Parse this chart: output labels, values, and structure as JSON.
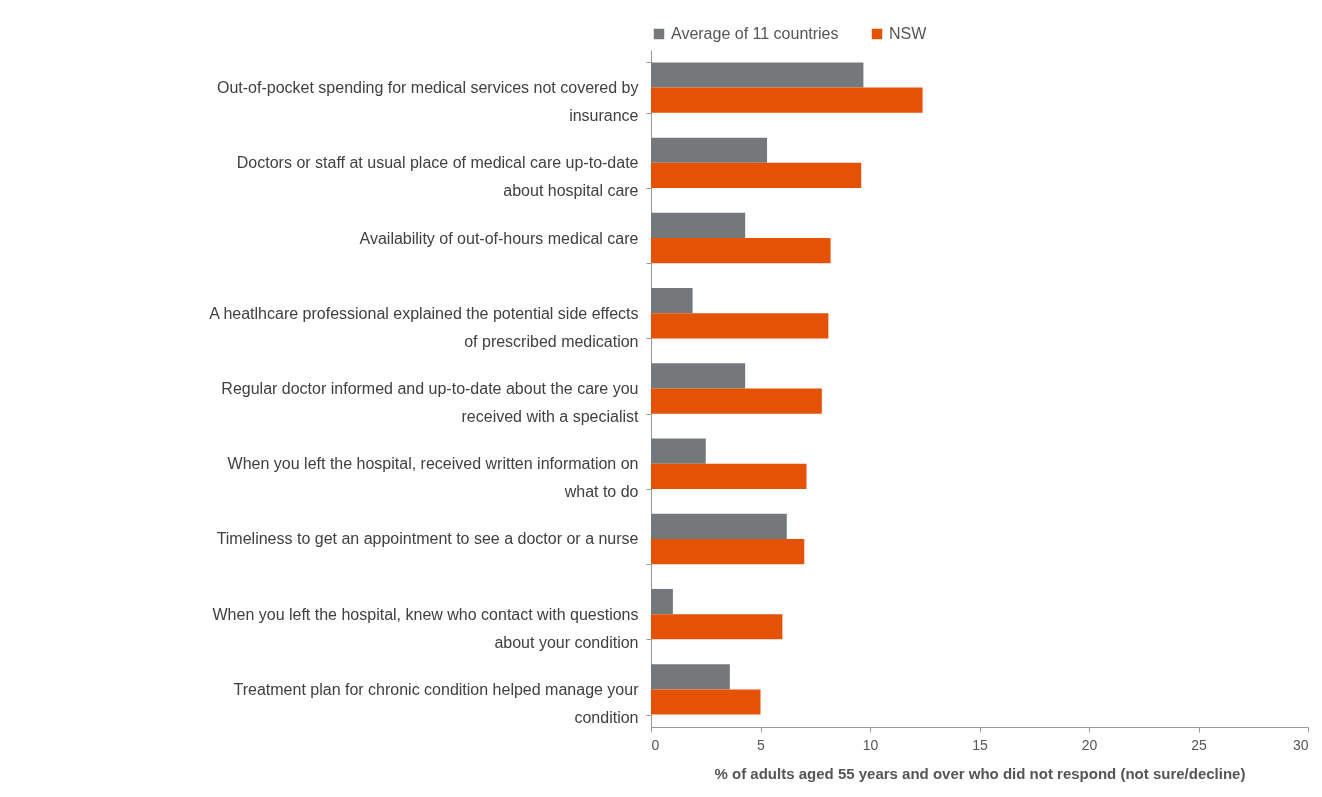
{
  "chart_data": {
    "type": "bar",
    "orientation": "horizontal",
    "xlabel": "% of adults aged 55 years and over who did not respond (not sure/decline)",
    "categories": [
      "Out-of-pocket spending for medical services not covered by insurance",
      "Doctors or staff  at usual place of medical care up-to-date about hospital care",
      "Availability of out-of-hours medical care",
      "A heatlhcare professional explained the potential side effects of prescribed medication",
      "Regular doctor  informed and up-to-date about the care you received with a specialist",
      "When you left the hospital,  received written information on what to do",
      "Timeliness to get an appointment to see a doctor or a nurse",
      "When you left the hospital, knew who contact with questions about your condition",
      "Treatment plan for chronic condition helped  manage your condition"
    ],
    "series": [
      {
        "name": "Average of 11 countries",
        "color": "#75787b",
        "values": [
          9.7,
          5.3,
          4.3,
          1.9,
          4.3,
          2.5,
          6.2,
          1.0,
          3.6
        ]
      },
      {
        "name": "NSW",
        "color": "#e35205",
        "values": [
          12.4,
          9.6,
          8.2,
          8.1,
          7.8,
          7.1,
          7.0,
          6.0,
          5.0
        ]
      }
    ],
    "xlim": [
      0,
      30
    ],
    "xticks": [
      0,
      5,
      10,
      15,
      20,
      25,
      30
    ],
    "grid": false,
    "legend": "top"
  }
}
